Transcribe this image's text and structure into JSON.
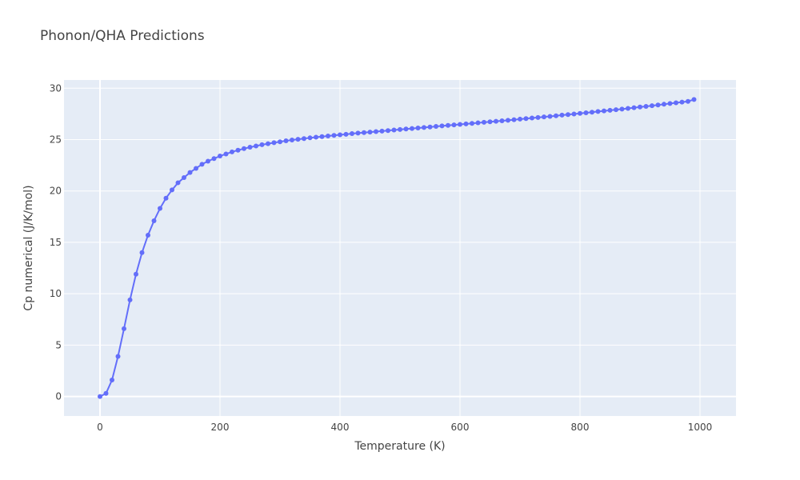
{
  "chart_data": {
    "type": "line",
    "title": "Phonon/QHA Predictions",
    "xlabel": "Temperature (K)",
    "ylabel": "Cp numerical (J/K/mol)",
    "xlim": [
      -60,
      1060
    ],
    "ylim": [
      -1.9,
      30.8
    ],
    "xticks": [
      0,
      200,
      400,
      600,
      800,
      1000
    ],
    "yticks": [
      0,
      5,
      10,
      15,
      20,
      25,
      30
    ],
    "grid": true,
    "legend": "none",
    "colors": {
      "background": "#E5ECF6",
      "grid": "#ffffff",
      "series": "#636EFA"
    },
    "series": [
      {
        "mode": "lines+markers",
        "x": [
          0,
          10,
          20,
          30,
          40,
          50,
          60,
          70,
          80,
          90,
          100,
          110,
          120,
          130,
          140,
          150,
          160,
          170,
          180,
          190,
          200,
          210,
          220,
          230,
          240,
          250,
          260,
          270,
          280,
          290,
          300,
          310,
          320,
          330,
          340,
          350,
          360,
          370,
          380,
          390,
          400,
          410,
          420,
          430,
          440,
          450,
          460,
          470,
          480,
          490,
          500,
          510,
          520,
          530,
          540,
          550,
          560,
          570,
          580,
          590,
          600,
          610,
          620,
          630,
          640,
          650,
          660,
          670,
          680,
          690,
          700,
          710,
          720,
          730,
          740,
          750,
          760,
          770,
          780,
          790,
          800,
          810,
          820,
          830,
          840,
          850,
          860,
          870,
          880,
          890,
          900,
          910,
          920,
          930,
          940,
          950,
          960,
          970,
          980,
          990
        ],
        "y": [
          0,
          0.3,
          1.6,
          3.9,
          6.6,
          9.4,
          11.9,
          14.0,
          15.7,
          17.1,
          18.3,
          19.3,
          20.1,
          20.8,
          21.3,
          21.8,
          22.2,
          22.6,
          22.9,
          23.15,
          23.4,
          23.6,
          23.8,
          23.97,
          24.12,
          24.26,
          24.38,
          24.5,
          24.6,
          24.7,
          24.79,
          24.88,
          24.96,
          25.03,
          25.1,
          25.17,
          25.23,
          25.29,
          25.35,
          25.41,
          25.47,
          25.52,
          25.58,
          25.63,
          25.68,
          25.73,
          25.78,
          25.83,
          25.88,
          25.93,
          25.98,
          26.03,
          26.08,
          26.13,
          26.18,
          26.23,
          26.28,
          26.33,
          26.38,
          26.43,
          26.48,
          26.53,
          26.58,
          26.63,
          26.68,
          26.73,
          26.78,
          26.83,
          26.88,
          26.94,
          26.99,
          27.04,
          27.1,
          27.15,
          27.21,
          27.26,
          27.32,
          27.38,
          27.43,
          27.49,
          27.55,
          27.61,
          27.67,
          27.73,
          27.79,
          27.85,
          27.91,
          27.97,
          28.04,
          28.1,
          28.17,
          28.23,
          28.3,
          28.37,
          28.44,
          28.51,
          28.58,
          28.65,
          28.72,
          28.9
        ]
      }
    ]
  }
}
